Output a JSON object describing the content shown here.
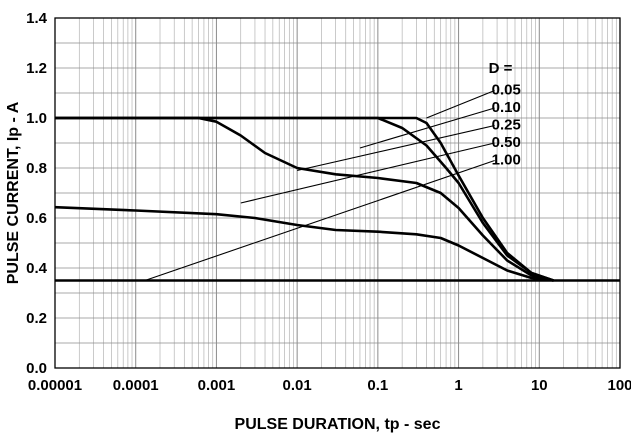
{
  "chart_data": {
    "type": "line",
    "xlabel": "PULSE DURATION, tp - sec",
    "ylabel": "PULSE CURRENT, Ip - A",
    "xscale": "log",
    "xlim": [
      1e-05,
      100
    ],
    "ylim": [
      0.0,
      1.4
    ],
    "grid": true,
    "x_tick_labels": [
      "0.00001",
      "0.0001",
      "0.001",
      "0.01",
      "0.1",
      "1",
      "10",
      "100"
    ],
    "x_ticks": [
      1e-05,
      0.0001,
      0.001,
      0.01,
      0.1,
      1,
      10,
      100
    ],
    "y_tick_labels": [
      "0.0",
      "0.2",
      "0.4",
      "0.6",
      "0.8",
      "1.0",
      "1.2",
      "1.4"
    ],
    "y_ticks": [
      0.0,
      0.2,
      0.4,
      0.6,
      0.8,
      1.0,
      1.2,
      1.4
    ],
    "legend_title": "D =",
    "series": [
      {
        "name": "0.05",
        "points": [
          [
            1e-05,
            1.0
          ],
          [
            0.3,
            1.0
          ],
          [
            0.4,
            0.98
          ],
          [
            0.6,
            0.9
          ],
          [
            1,
            0.77
          ],
          [
            2,
            0.6
          ],
          [
            4,
            0.46
          ],
          [
            8,
            0.38
          ],
          [
            15,
            0.35
          ]
        ]
      },
      {
        "name": "0.10",
        "points": [
          [
            1e-05,
            1.0
          ],
          [
            0.1,
            1.0
          ],
          [
            0.2,
            0.96
          ],
          [
            0.4,
            0.89
          ],
          [
            0.7,
            0.8
          ],
          [
            1,
            0.74
          ],
          [
            2,
            0.58
          ],
          [
            4,
            0.45
          ],
          [
            8,
            0.38
          ],
          [
            15,
            0.35
          ]
        ]
      },
      {
        "name": "0.25",
        "points": [
          [
            1e-05,
            1.0
          ],
          [
            0.0006,
            1.0
          ],
          [
            0.001,
            0.985
          ],
          [
            0.002,
            0.93
          ],
          [
            0.004,
            0.86
          ],
          [
            0.01,
            0.8
          ],
          [
            0.03,
            0.775
          ],
          [
            0.1,
            0.76
          ],
          [
            0.3,
            0.74
          ],
          [
            0.6,
            0.7
          ],
          [
            1,
            0.64
          ],
          [
            2,
            0.53
          ],
          [
            4,
            0.43
          ],
          [
            8,
            0.37
          ],
          [
            15,
            0.35
          ]
        ]
      },
      {
        "name": "0.50",
        "points": [
          [
            1e-05,
            0.643
          ],
          [
            0.0001,
            0.63
          ],
          [
            0.001,
            0.615
          ],
          [
            0.003,
            0.6
          ],
          [
            0.01,
            0.572
          ],
          [
            0.03,
            0.552
          ],
          [
            0.1,
            0.545
          ],
          [
            0.3,
            0.535
          ],
          [
            0.6,
            0.52
          ],
          [
            1,
            0.49
          ],
          [
            2,
            0.44
          ],
          [
            4,
            0.39
          ],
          [
            8,
            0.36
          ],
          [
            15,
            0.35
          ]
        ]
      },
      {
        "name": "1.00",
        "points": [
          [
            1e-05,
            0.35
          ],
          [
            100,
            0.35
          ]
        ]
      }
    ],
    "series_label_lines": [
      {
        "name": "0.05",
        "points": [
          [
            0.4,
            1.0
          ],
          [
            2.8,
            1.11
          ]
        ]
      },
      {
        "name": "0.10",
        "points": [
          [
            0.06,
            0.88
          ],
          [
            2.8,
            1.04
          ]
        ]
      },
      {
        "name": "0.25",
        "points": [
          [
            0.01,
            0.79
          ],
          [
            2.8,
            0.97
          ]
        ]
      },
      {
        "name": "0.50",
        "points": [
          [
            0.002,
            0.66
          ],
          [
            2.8,
            0.9
          ]
        ]
      },
      {
        "name": "1.00",
        "points": [
          [
            0.00013,
            0.35
          ],
          [
            2.8,
            0.83
          ]
        ]
      }
    ]
  }
}
